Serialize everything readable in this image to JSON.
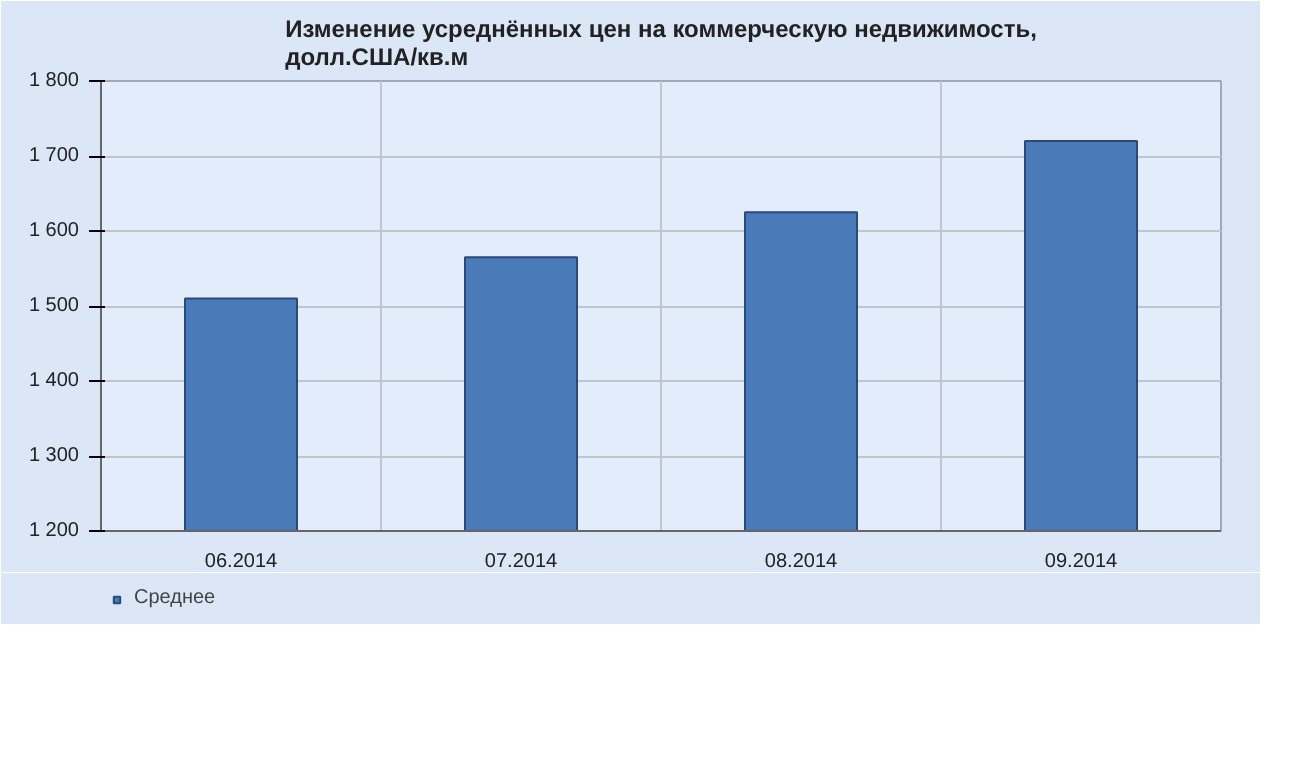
{
  "chart_data": {
    "type": "bar",
    "title": "Изменение усреднённых цен на коммерческую недвижимость,\nдолл.США/кв.м",
    "categories": [
      "06.2014",
      "07.2014",
      "08.2014",
      "09.2014"
    ],
    "series": [
      {
        "name": "Среднее",
        "color": "#4a7ab8",
        "values": [
          1510,
          1565,
          1625,
          1720
        ]
      }
    ],
    "ylim": [
      1200,
      1800
    ],
    "yticks": [
      {
        "value": 1200,
        "label": "1 200"
      },
      {
        "value": 1300,
        "label": "1 300"
      },
      {
        "value": 1400,
        "label": "1 400"
      },
      {
        "value": 1500,
        "label": "1 500"
      },
      {
        "value": 1600,
        "label": "1 600"
      },
      {
        "value": 1700,
        "label": "1 700"
      },
      {
        "value": 1800,
        "label": "1 800"
      }
    ],
    "grid": true,
    "legend": "bottom left"
  }
}
